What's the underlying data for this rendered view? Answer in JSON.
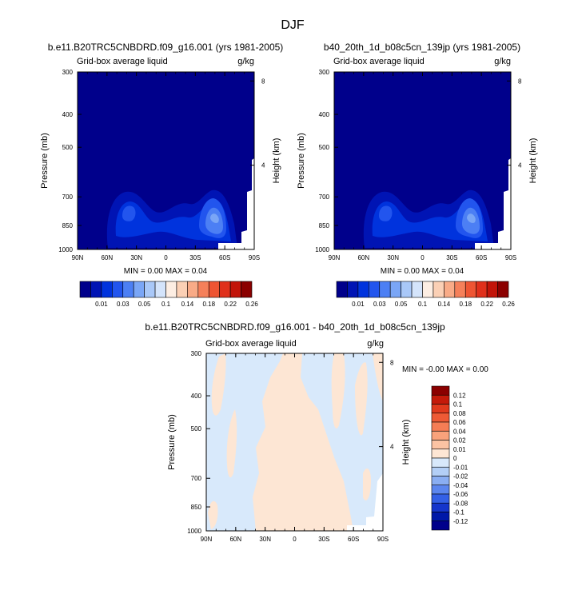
{
  "figure": {
    "title": "DJF"
  },
  "colors": {
    "bg_field": "#00008b",
    "diff_pos": "#fde6d4",
    "diff_neg": "#d8e9fb"
  },
  "chart_data": [
    {
      "type": "heatmap",
      "title": "b.e11.B20TRC5CNBDRD.f09_g16.001 (yrs 1981-2005)",
      "left_label": "Grid-box average liquid",
      "right_label": "g/kg",
      "xlabel": "",
      "ylabel": "Pressure (mb)",
      "y2label": "Height (km)",
      "x_ticks": [
        "90N",
        "60N",
        "30N",
        "0",
        "30S",
        "60S",
        "90S"
      ],
      "y_ticks": [
        "300",
        "400",
        "500",
        "700",
        "850",
        "1000"
      ],
      "y_tick_values": [
        300,
        400,
        500,
        700,
        850,
        1000
      ],
      "y2_ticks": [
        "8",
        "4"
      ],
      "y2_tick_values": [
        8,
        4
      ],
      "ylim": [
        300,
        1000
      ],
      "minmax": "MIN =  0.00  MAX =  0.04",
      "colorbar": {
        "labels": [
          "0.01",
          "0.03",
          "0.05",
          "0.1",
          "0.14",
          "0.18",
          "0.22",
          "0.26"
        ],
        "colors": [
          "#00008b",
          "#0014b4",
          "#0033dd",
          "#2255ee",
          "#4c7ff4",
          "#7aa6f6",
          "#a9c8f8",
          "#d4e4fb",
          "#fdeee3",
          "#fbd0b5",
          "#f9ab87",
          "#f5805a",
          "#ee5533",
          "#e0301b",
          "#c21409",
          "#8b0000"
        ]
      }
    },
    {
      "type": "heatmap",
      "title": "b40_20th_1d_b08c5cn_139jp (yrs 1981-2005)",
      "left_label": "Grid-box average liquid",
      "right_label": "g/kg",
      "xlabel": "",
      "ylabel": "Pressure (mb)",
      "y2label": "Height (km)",
      "x_ticks": [
        "90N",
        "60N",
        "30N",
        "0",
        "30S",
        "60S",
        "90S"
      ],
      "y_ticks": [
        "300",
        "400",
        "500",
        "700",
        "850",
        "1000"
      ],
      "y_tick_values": [
        300,
        400,
        500,
        700,
        850,
        1000
      ],
      "y2_ticks": [
        "8",
        "4"
      ],
      "y2_tick_values": [
        8,
        4
      ],
      "ylim": [
        300,
        1000
      ],
      "minmax": "MIN =  0.00  MAX =  0.04",
      "colorbar": {
        "labels": [
          "0.01",
          "0.03",
          "0.05",
          "0.1",
          "0.14",
          "0.18",
          "0.22",
          "0.26"
        ],
        "colors": [
          "#00008b",
          "#0014b4",
          "#0033dd",
          "#2255ee",
          "#4c7ff4",
          "#7aa6f6",
          "#a9c8f8",
          "#d4e4fb",
          "#fdeee3",
          "#fbd0b5",
          "#f9ab87",
          "#f5805a",
          "#ee5533",
          "#e0301b",
          "#c21409",
          "#8b0000"
        ]
      }
    },
    {
      "type": "heatmap",
      "title": "b.e11.B20TRC5CNBDRD.f09_g16.001 - b40_20th_1d_b08c5cn_139jp",
      "left_label": "Grid-box average liquid",
      "right_label": "g/kg",
      "xlabel": "",
      "ylabel": "Pressure (mb)",
      "y2label": "Height (km)",
      "x_ticks": [
        "90N",
        "60N",
        "30N",
        "0",
        "30S",
        "60S",
        "90S"
      ],
      "y_ticks": [
        "300",
        "400",
        "500",
        "700",
        "850",
        "1000"
      ],
      "y_tick_values": [
        300,
        400,
        500,
        700,
        850,
        1000
      ],
      "y2_ticks": [
        "8",
        "4"
      ],
      "y2_tick_values": [
        8,
        4
      ],
      "ylim": [
        300,
        1000
      ],
      "minmax": "MIN = -0.00  MAX =  0.00",
      "colorbar": {
        "labels": [
          "0.12",
          "0.1",
          "0.08",
          "0.06",
          "0.04",
          "0.02",
          "0.01",
          "0",
          "-0.01",
          "-0.02",
          "-0.04",
          "-0.06",
          "-0.08",
          "-0.1",
          "-0.12"
        ],
        "colors": [
          "#8b0000",
          "#c41a0a",
          "#e03a1d",
          "#ee5a35",
          "#f57d55",
          "#f9a27b",
          "#fbc3a3",
          "#fde6d4",
          "#d8e9fb",
          "#b3cff6",
          "#8aaef2",
          "#5c86ee",
          "#3460e6",
          "#1535cc",
          "#0018a8",
          "#00008b"
        ]
      }
    }
  ]
}
